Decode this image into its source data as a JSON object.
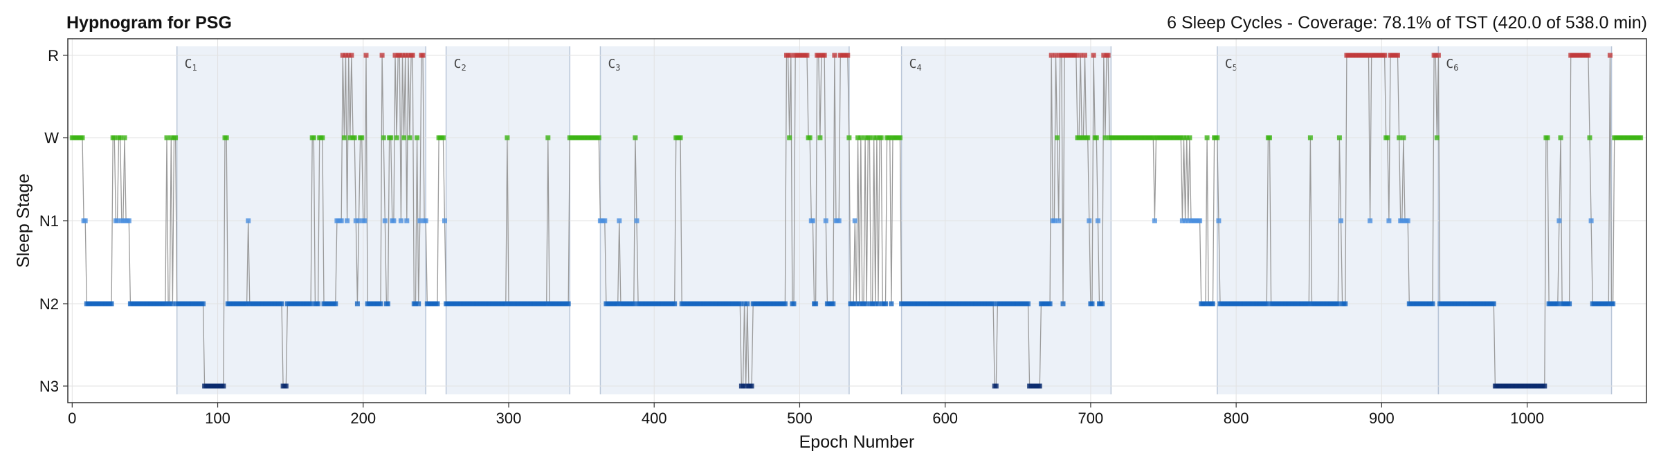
{
  "chart_data": {
    "type": "line",
    "title": "Hypnogram for PSG",
    "subtitle": "6 Sleep Cycles - Coverage: 78.1% of TST (420.0 of 538.0 min)",
    "xlabel": "Epoch Number",
    "ylabel": "Sleep Stage",
    "xlim": [
      -3,
      1082
    ],
    "x_ticks": [
      0,
      100,
      200,
      300,
      400,
      500,
      600,
      700,
      800,
      900,
      1000
    ],
    "y_categories": [
      "N3",
      "N2",
      "N1",
      "W",
      "R"
    ],
    "grid": true,
    "stage_colors": {
      "W": "#3cb414",
      "N1": "#4a8ede",
      "N2": "#1565c0",
      "N3": "#0a2a6e",
      "R": "#c0393b"
    },
    "line_color": "#9a9a9a",
    "cycle_fill": "#dfe7f3",
    "cycles": [
      {
        "label": "C",
        "sub": "1",
        "start": 72,
        "end": 243
      },
      {
        "label": "C",
        "sub": "2",
        "start": 257,
        "end": 342
      },
      {
        "label": "C",
        "sub": "3",
        "start": 363,
        "end": 534
      },
      {
        "label": "C",
        "sub": "4",
        "start": 570,
        "end": 714
      },
      {
        "label": "C",
        "sub": "5",
        "start": 787,
        "end": 939
      },
      {
        "label": "C",
        "sub": "6",
        "start": 939,
        "end": 1058
      }
    ],
    "hypnogram_segments": [
      [
        0,
        "W"
      ],
      [
        8,
        "N1"
      ],
      [
        10,
        "N2"
      ],
      [
        28,
        "W"
      ],
      [
        30,
        "N1"
      ],
      [
        32,
        "W"
      ],
      [
        34,
        "N1"
      ],
      [
        36,
        "W"
      ],
      [
        37,
        "N1"
      ],
      [
        40,
        "N2"
      ],
      [
        65,
        "W"
      ],
      [
        66,
        "N2"
      ],
      [
        68,
        "W"
      ],
      [
        69,
        "N2"
      ],
      [
        70,
        "W"
      ],
      [
        72,
        "N2"
      ],
      [
        91,
        "N3"
      ],
      [
        105,
        "W"
      ],
      [
        107,
        "N2"
      ],
      [
        121,
        "N1"
      ],
      [
        122,
        "N2"
      ],
      [
        145,
        "N3"
      ],
      [
        148,
        "N2"
      ],
      [
        165,
        "W"
      ],
      [
        167,
        "N2"
      ],
      [
        170,
        "W"
      ],
      [
        173,
        "N2"
      ],
      [
        182,
        "N1"
      ],
      [
        186,
        "R"
      ],
      [
        187,
        "W"
      ],
      [
        188,
        "R"
      ],
      [
        189,
        "N1"
      ],
      [
        190,
        "R"
      ],
      [
        191,
        "W"
      ],
      [
        192,
        "R"
      ],
      [
        193,
        "W"
      ],
      [
        195,
        "N1"
      ],
      [
        196,
        "N2"
      ],
      [
        197,
        "N1"
      ],
      [
        198,
        "W"
      ],
      [
        200,
        "N1"
      ],
      [
        202,
        "R"
      ],
      [
        203,
        "N2"
      ],
      [
        213,
        "R"
      ],
      [
        214,
        "W"
      ],
      [
        215,
        "N1"
      ],
      [
        216,
        "N2"
      ],
      [
        218,
        "W"
      ],
      [
        220,
        "N1"
      ],
      [
        222,
        "R"
      ],
      [
        223,
        "W"
      ],
      [
        224,
        "R"
      ],
      [
        226,
        "N1"
      ],
      [
        227,
        "R"
      ],
      [
        228,
        "W"
      ],
      [
        229,
        "R"
      ],
      [
        230,
        "N1"
      ],
      [
        231,
        "R"
      ],
      [
        232,
        "W"
      ],
      [
        233,
        "R"
      ],
      [
        235,
        "N2"
      ],
      [
        237,
        "W"
      ],
      [
        238,
        "N2"
      ],
      [
        239,
        "N1"
      ],
      [
        240,
        "R"
      ],
      [
        242,
        "N1"
      ],
      [
        244,
        "N2"
      ],
      [
        252,
        "W"
      ],
      [
        256,
        "N1"
      ],
      [
        257,
        "N2"
      ],
      [
        299,
        "W"
      ],
      [
        300,
        "N2"
      ],
      [
        327,
        "W"
      ],
      [
        328,
        "N2"
      ],
      [
        342,
        "W"
      ],
      [
        363,
        "N1"
      ],
      [
        367,
        "N2"
      ],
      [
        376,
        "N1"
      ],
      [
        377,
        "N2"
      ],
      [
        387,
        "W"
      ],
      [
        388,
        "N1"
      ],
      [
        389,
        "N2"
      ],
      [
        415,
        "W"
      ],
      [
        419,
        "N2"
      ],
      [
        460,
        "N3"
      ],
      [
        462,
        "N2"
      ],
      [
        463,
        "N3"
      ],
      [
        464,
        "N2"
      ],
      [
        465,
        "N3"
      ],
      [
        468,
        "N2"
      ],
      [
        491,
        "R"
      ],
      [
        493,
        "W"
      ],
      [
        494,
        "R"
      ],
      [
        495,
        "N2"
      ],
      [
        497,
        "R"
      ],
      [
        506,
        "W"
      ],
      [
        508,
        "N1"
      ],
      [
        510,
        "N2"
      ],
      [
        512,
        "R"
      ],
      [
        514,
        "W"
      ],
      [
        515,
        "R"
      ],
      [
        518,
        "N1"
      ],
      [
        519,
        "N2"
      ],
      [
        524,
        "R"
      ],
      [
        525,
        "N1"
      ],
      [
        528,
        "R"
      ],
      [
        534,
        "W"
      ],
      [
        535,
        "N2"
      ],
      [
        538,
        "N1"
      ],
      [
        539,
        "N2"
      ],
      [
        540,
        "W"
      ],
      [
        541,
        "N2"
      ],
      [
        542,
        "W"
      ],
      [
        543,
        "N2"
      ],
      [
        545,
        "W"
      ],
      [
        546,
        "N2"
      ],
      [
        547,
        "W"
      ],
      [
        549,
        "N2"
      ],
      [
        551,
        "W"
      ],
      [
        552,
        "N2"
      ],
      [
        553,
        "W"
      ],
      [
        554,
        "N2"
      ],
      [
        555,
        "W"
      ],
      [
        557,
        "N2"
      ],
      [
        560,
        "W"
      ],
      [
        563,
        "N2"
      ],
      [
        564,
        "W"
      ],
      [
        570,
        "N2"
      ],
      [
        634,
        "N3"
      ],
      [
        636,
        "N2"
      ],
      [
        658,
        "N3"
      ],
      [
        666,
        "N2"
      ],
      [
        673,
        "R"
      ],
      [
        674,
        "N1"
      ],
      [
        676,
        "R"
      ],
      [
        677,
        "W"
      ],
      [
        678,
        "N1"
      ],
      [
        679,
        "R"
      ],
      [
        681,
        "N2"
      ],
      [
        682,
        "R"
      ],
      [
        691,
        "W"
      ],
      [
        693,
        "R"
      ],
      [
        694,
        "W"
      ],
      [
        696,
        "R"
      ],
      [
        697,
        "W"
      ],
      [
        699,
        "N1"
      ],
      [
        700,
        "N2"
      ],
      [
        702,
        "R"
      ],
      [
        703,
        "W"
      ],
      [
        705,
        "N1"
      ],
      [
        706,
        "N2"
      ],
      [
        709,
        "R"
      ],
      [
        710,
        "W"
      ],
      [
        711,
        "R"
      ],
      [
        713,
        "W"
      ],
      [
        744,
        "N1"
      ],
      [
        745,
        "W"
      ],
      [
        763,
        "N1"
      ],
      [
        764,
        "W"
      ],
      [
        765,
        "N1"
      ],
      [
        766,
        "W"
      ],
      [
        767,
        "N1"
      ],
      [
        768,
        "W"
      ],
      [
        769,
        "N1"
      ],
      [
        776,
        "N2"
      ],
      [
        780,
        "W"
      ],
      [
        781,
        "N2"
      ],
      [
        785,
        "W"
      ],
      [
        788,
        "N1"
      ],
      [
        789,
        "N2"
      ],
      [
        822,
        "W"
      ],
      [
        824,
        "N2"
      ],
      [
        851,
        "W"
      ],
      [
        852,
        "N2"
      ],
      [
        871,
        "W"
      ],
      [
        872,
        "N1"
      ],
      [
        873,
        "N2"
      ],
      [
        876,
        "R"
      ],
      [
        892,
        "N1"
      ],
      [
        893,
        "R"
      ],
      [
        903,
        "W"
      ],
      [
        905,
        "N1"
      ],
      [
        906,
        "R"
      ],
      [
        912,
        "W"
      ],
      [
        913,
        "N1"
      ],
      [
        915,
        "W"
      ],
      [
        916,
        "N1"
      ],
      [
        919,
        "N2"
      ],
      [
        936,
        "R"
      ],
      [
        938,
        "W"
      ],
      [
        939,
        "R"
      ],
      [
        940,
        "N2"
      ],
      [
        978,
        "N3"
      ],
      [
        1013,
        "W"
      ],
      [
        1015,
        "N2"
      ],
      [
        1022,
        "N1"
      ],
      [
        1023,
        "W"
      ],
      [
        1024,
        "N2"
      ],
      [
        1030,
        "R"
      ],
      [
        1043,
        "W"
      ],
      [
        1044,
        "N1"
      ],
      [
        1045,
        "N2"
      ],
      [
        1057,
        "R"
      ],
      [
        1058,
        "N2"
      ],
      [
        1060,
        "W"
      ],
      [
        1079,
        "END"
      ]
    ]
  }
}
